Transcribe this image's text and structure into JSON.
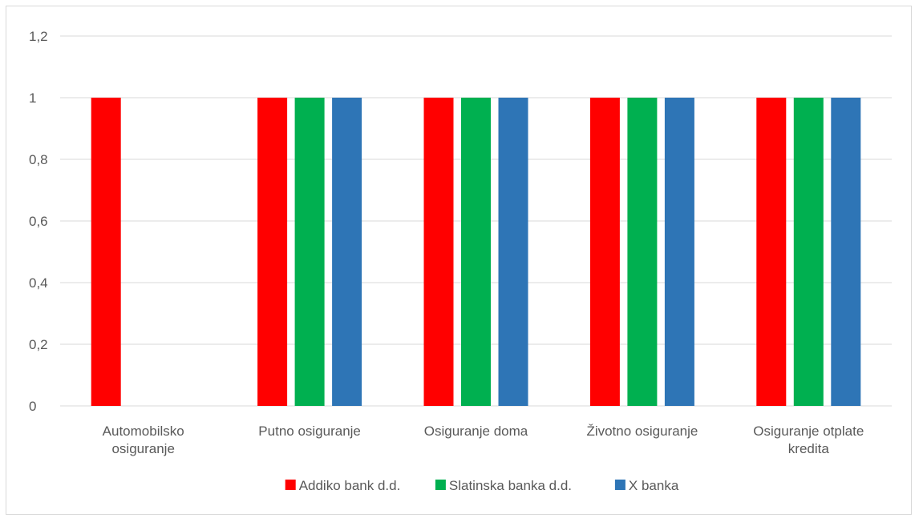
{
  "chart_data": {
    "type": "bar",
    "categories": [
      [
        "Automobilsko",
        "osiguranje"
      ],
      [
        "Putno osiguranje"
      ],
      [
        "Osiguranje doma"
      ],
      [
        "Životno osiguranje"
      ],
      [
        "Osiguranje otplate",
        "kredita"
      ]
    ],
    "series": [
      {
        "name": "Addiko bank d.d.",
        "color": "#ff0000",
        "values": [
          1,
          1,
          1,
          1,
          1
        ]
      },
      {
        "name": "Slatinska banka d.d.",
        "color": "#00b050",
        "values": [
          0,
          1,
          1,
          1,
          1
        ]
      },
      {
        "name": "X banka",
        "color": "#2e75b6",
        "values": [
          0,
          1,
          1,
          1,
          1
        ]
      }
    ],
    "ylim": [
      0,
      1.2
    ],
    "yticks": [
      "0",
      "0,2",
      "0,4",
      "0,6",
      "0,8",
      "1",
      "1,2"
    ],
    "grid": true,
    "legend_position": "bottom",
    "title": "",
    "xlabel": "",
    "ylabel": ""
  }
}
